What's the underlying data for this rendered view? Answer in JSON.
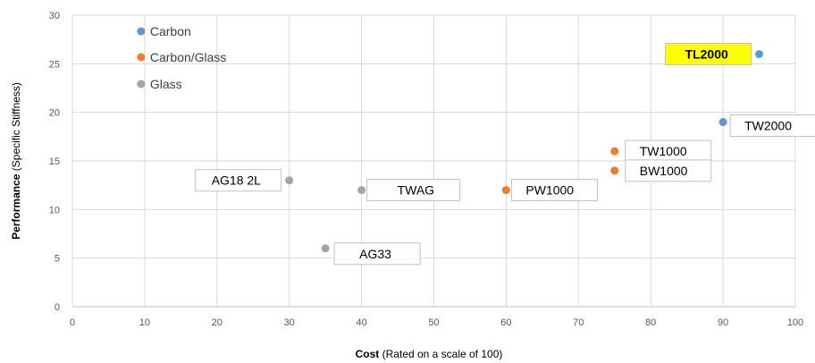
{
  "chart_data": {
    "type": "scatter",
    "xlabel": {
      "bold": "Cost",
      "rest": " (Rated on a scale of 100)"
    },
    "ylabel": {
      "bold": "Performance",
      "rest": " (Specific Stiffness)"
    },
    "xlim": [
      0,
      100
    ],
    "ylim": [
      0,
      30
    ],
    "xticks": [
      0,
      10,
      20,
      30,
      40,
      50,
      60,
      70,
      80,
      90,
      100
    ],
    "yticks": [
      0,
      5,
      10,
      15,
      20,
      25,
      30
    ],
    "grid": true,
    "legend_placement": "top-left",
    "series": [
      {
        "name": "Carbon",
        "color": "#5B9BD5",
        "points": [
          {
            "label": "TL2000",
            "x": 95,
            "y": 26,
            "highlight": true
          },
          {
            "label": "TW2000",
            "x": 90,
            "y": 19
          }
        ]
      },
      {
        "name": "Carbon/Glass",
        "color": "#ED7D31",
        "points": [
          {
            "label": "TW1000",
            "x": 75,
            "y": 16
          },
          {
            "label": "BW1000",
            "x": 75,
            "y": 14
          },
          {
            "label": "PW1000",
            "x": 60,
            "y": 12
          }
        ]
      },
      {
        "name": "Glass",
        "color": "#A5A5A5",
        "points": [
          {
            "label": "AG18 2L",
            "x": 30,
            "y": 13
          },
          {
            "label": "TWAG",
            "x": 40,
            "y": 12
          },
          {
            "label": "AG33",
            "x": 35,
            "y": 6
          }
        ]
      }
    ],
    "highlight_color": "#FFFF00"
  }
}
